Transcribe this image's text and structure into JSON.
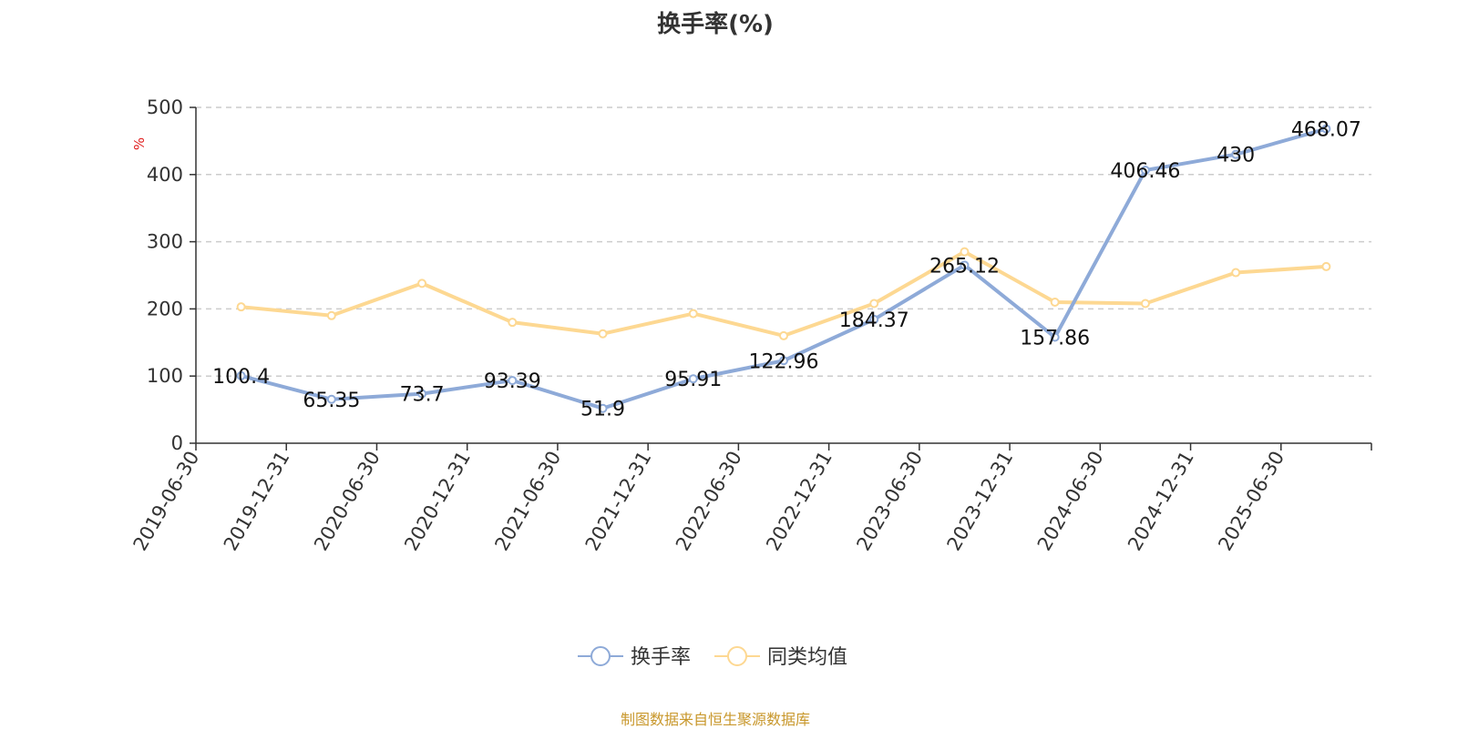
{
  "chart_data": {
    "type": "line",
    "title": "换手率(%)",
    "ylabel": "%",
    "ylim": [
      0,
      500
    ],
    "yticks": [
      0,
      100,
      200,
      300,
      400,
      500
    ],
    "categories": [
      "2019-06-30",
      "2019-12-31",
      "2020-06-30",
      "2020-12-31",
      "2021-06-30",
      "2021-12-31",
      "2022-06-30",
      "2022-12-31",
      "2023-06-30",
      "2023-12-31",
      "2024-06-30",
      "2024-12-31",
      "2025-06-30"
    ],
    "series": [
      {
        "name": "换手率",
        "color": "#8eaad8",
        "values": [
          100.4,
          65.35,
          73.7,
          93.39,
          51.9,
          95.91,
          122.96,
          184.37,
          265.12,
          157.86,
          406.46,
          430,
          468.07
        ],
        "labels": [
          "100.4",
          "65.35",
          "73.7",
          "93.39",
          "51.9",
          "95.91",
          "122.96",
          "184.37",
          "265.12",
          "157.86",
          "406.46",
          "430",
          "468.07"
        ]
      },
      {
        "name": "同类均值",
        "color": "#fdd892",
        "values": [
          203,
          190,
          238,
          180,
          163,
          193,
          160,
          208,
          285,
          210,
          208,
          254,
          263
        ]
      }
    ],
    "grid": "horizontal dashed",
    "legend_position": "bottom-center"
  },
  "source_note": "制图数据来自恒生聚源数据库"
}
